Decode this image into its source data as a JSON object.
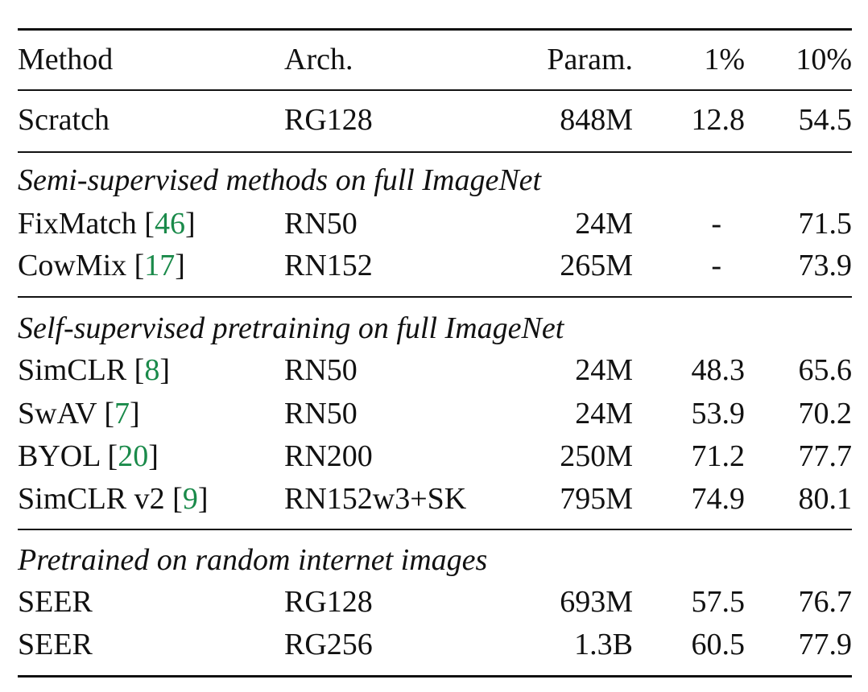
{
  "header": {
    "method": "Method",
    "arch": "Arch.",
    "param": "Param.",
    "p1": "1%",
    "p10": "10%"
  },
  "scratch": {
    "method": "Scratch",
    "arch": "RG128",
    "param": "848M",
    "p1": "12.8",
    "p10": "54.5"
  },
  "sections": [
    {
      "title": "Semi-supervised methods on full ImageNet",
      "rows": [
        {
          "method": "FixMatch",
          "cite": "46",
          "arch": "RN50",
          "param": "24M",
          "p1": "-",
          "p10": "71.5"
        },
        {
          "method": "CowMix",
          "cite": "17",
          "arch": "RN152",
          "param": "265M",
          "p1": "-",
          "p10": "73.9"
        }
      ]
    },
    {
      "title": "Self-supervised pretraining on full ImageNet",
      "rows": [
        {
          "method": "SimCLR",
          "cite": "8",
          "arch": "RN50",
          "param": "24M",
          "p1": "48.3",
          "p10": "65.6"
        },
        {
          "method": "SwAV",
          "cite": "7",
          "arch": "RN50",
          "param": "24M",
          "p1": "53.9",
          "p10": "70.2"
        },
        {
          "method": "BYOL",
          "cite": "20",
          "arch": "RN200",
          "param": "250M",
          "p1": "71.2",
          "p10": "77.7"
        },
        {
          "method": "SimCLR v2",
          "cite": "9",
          "arch": "RN152w3+SK",
          "param": "795M",
          "p1": "74.9",
          "p10": "80.1"
        }
      ]
    },
    {
      "title": "Pretrained on random internet images",
      "rows": [
        {
          "method": "SEER",
          "arch": "RG128",
          "param": "693M",
          "p1": "57.5",
          "p10": "76.7"
        },
        {
          "method": "SEER",
          "arch": "RG256",
          "param": "1.3B",
          "p1": "60.5",
          "p10": "77.9"
        }
      ]
    }
  ]
}
